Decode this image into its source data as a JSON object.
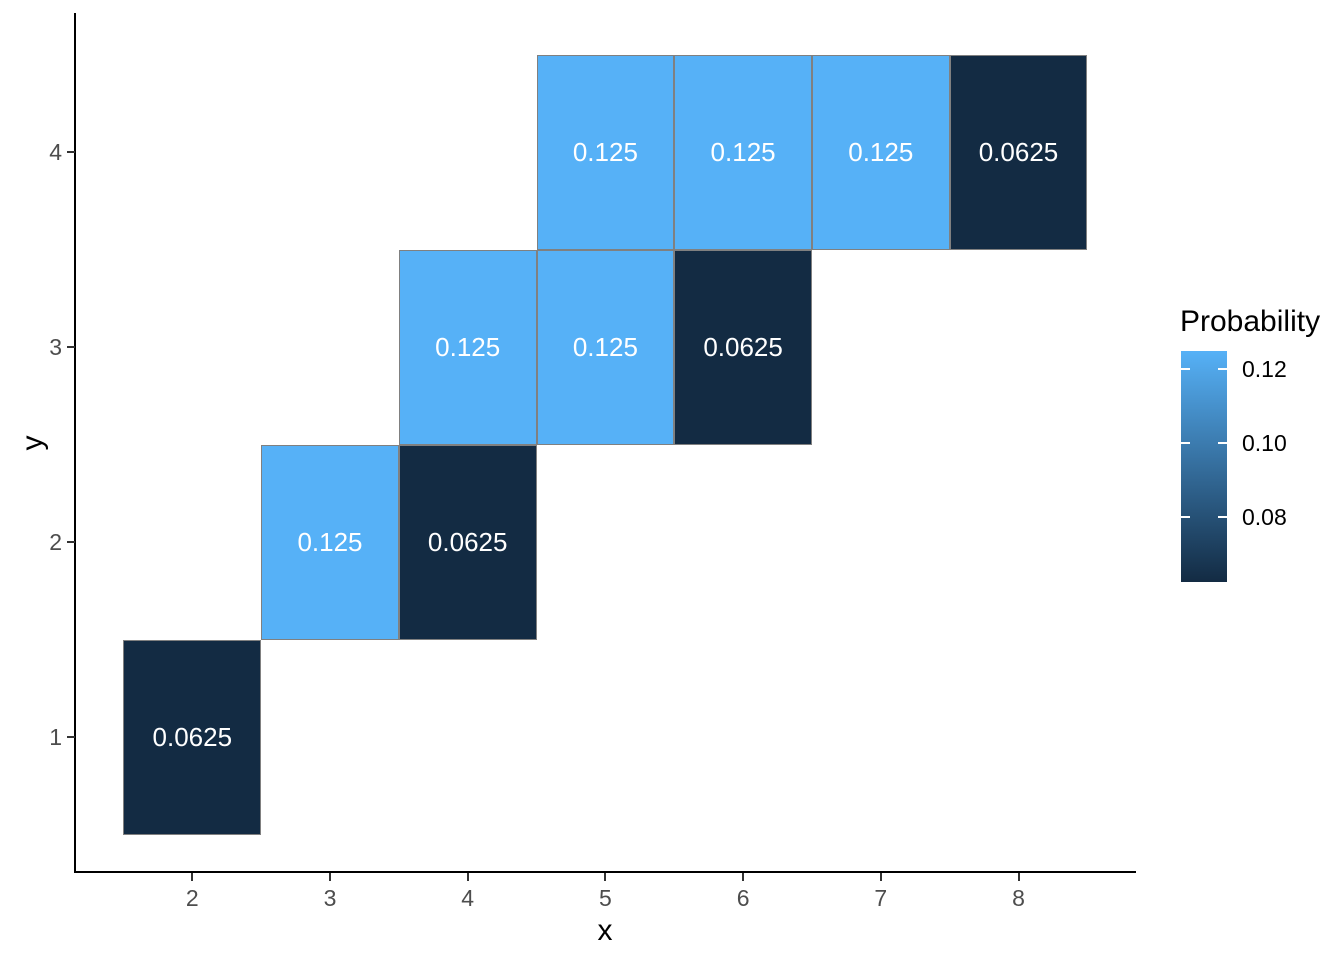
{
  "chart_data": {
    "type": "heatmap",
    "title": "",
    "xlabel": "x",
    "ylabel": "y",
    "x_ticks": [
      2,
      3,
      4,
      5,
      6,
      7,
      8
    ],
    "x_tick_labels": [
      "2",
      "3",
      "4",
      "5",
      "6",
      "7",
      "8"
    ],
    "y_ticks": [
      1,
      2,
      3,
      4
    ],
    "y_tick_labels": [
      "1",
      "2",
      "3",
      "4"
    ],
    "x_range": [
      1.15,
      8.85
    ],
    "y_range": [
      0.3,
      4.7
    ],
    "grid": false,
    "tiles": [
      {
        "x": 2,
        "y": 1,
        "value": 0.0625,
        "label": "0.0625"
      },
      {
        "x": 3,
        "y": 2,
        "value": 0.125,
        "label": "0.125"
      },
      {
        "x": 4,
        "y": 2,
        "value": 0.0625,
        "label": "0.0625"
      },
      {
        "x": 4,
        "y": 3,
        "value": 0.125,
        "label": "0.125"
      },
      {
        "x": 5,
        "y": 3,
        "value": 0.125,
        "label": "0.125"
      },
      {
        "x": 6,
        "y": 3,
        "value": 0.0625,
        "label": "0.0625"
      },
      {
        "x": 5,
        "y": 4,
        "value": 0.125,
        "label": "0.125"
      },
      {
        "x": 6,
        "y": 4,
        "value": 0.125,
        "label": "0.125"
      },
      {
        "x": 7,
        "y": 4,
        "value": 0.125,
        "label": "0.125"
      },
      {
        "x": 8,
        "y": 4,
        "value": 0.0625,
        "label": "0.0625"
      }
    ],
    "legend": {
      "title": "Probability",
      "position": "right",
      "domain": [
        0.0625,
        0.125
      ],
      "tick_values": [
        0.12,
        0.1,
        0.08
      ],
      "tick_labels": [
        "0.12",
        "0.10",
        "0.08"
      ]
    },
    "colors": {
      "low": "#132B43",
      "high": "#56B1F7",
      "tile_border": "#808080",
      "tile_label_text": "#FFFFFF",
      "axis_line": "#000000",
      "tick_mark": "#333333",
      "tick_text": "#4D4D4D",
      "title_text": "#000000",
      "background": "#FFFFFF"
    }
  }
}
